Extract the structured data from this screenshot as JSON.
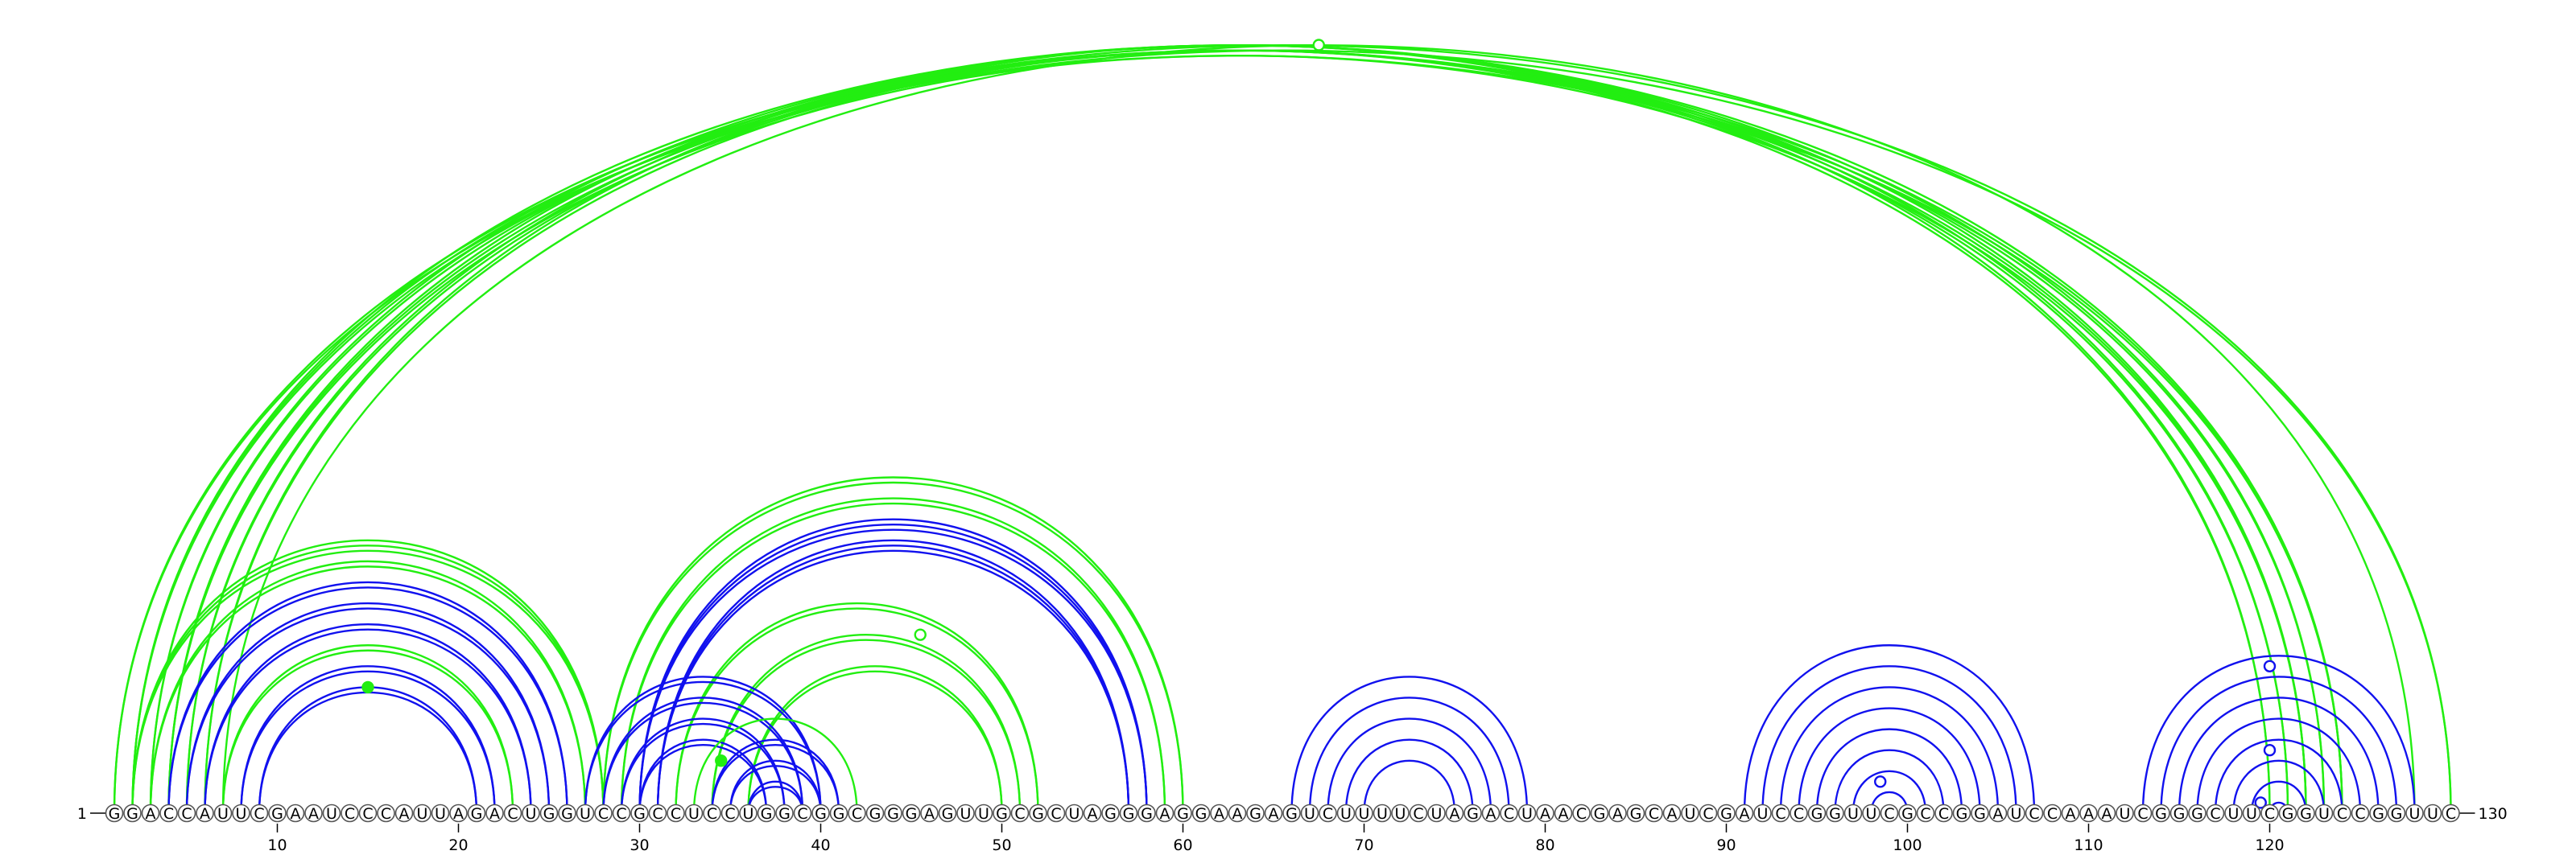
{
  "sequence": "GGACCAUUCGAAUCCCAUUAGACUGGUCCGCCUCCUGGCGGCGGGAGUUGCGCUAGGGAGGAAGAGUCUUUUCUAGACUAACGAGCAUCGAUCCGGUUCGCCGGAUCCAAAUCGGGCUUCGGUCCGGUUC",
  "start_label": "1",
  "end_label": "130",
  "tick_labels": [
    "10",
    "20",
    "30",
    "40",
    "50",
    "60",
    "70",
    "80",
    "90",
    "100",
    "110",
    "120"
  ],
  "colors": {
    "green": "#22ee11",
    "blue": "#1111ee",
    "outline": "#555555"
  },
  "arc_groups": [
    {
      "color": "green",
      "i": 1,
      "j": 130,
      "count": 2
    },
    {
      "color": "green",
      "i": 2,
      "j": 124,
      "count": 3
    },
    {
      "color": "green",
      "i": 3,
      "j": 123,
      "count": 2
    },
    {
      "color": "green",
      "i": 4,
      "j": 122,
      "count": 3
    },
    {
      "color": "green",
      "i": 5,
      "j": 121,
      "count": 2
    },
    {
      "color": "green",
      "i": 6,
      "j": 120,
      "count": 2
    },
    {
      "color": "green",
      "i": 7,
      "j": 128,
      "count": 1
    },
    {
      "color": "green",
      "i": 2,
      "j": 28,
      "count": 3
    },
    {
      "color": "green",
      "i": 3,
      "j": 27,
      "count": 2
    },
    {
      "color": "blue",
      "i": 4,
      "j": 26,
      "count": 2
    },
    {
      "color": "blue",
      "i": 5,
      "j": 25,
      "count": 2
    },
    {
      "color": "blue",
      "i": 6,
      "j": 24,
      "count": 2
    },
    {
      "color": "green",
      "i": 7,
      "j": 23,
      "count": 2
    },
    {
      "color": "blue",
      "i": 8,
      "j": 22,
      "count": 2
    },
    {
      "color": "blue",
      "i": 9,
      "j": 21,
      "count": 2
    },
    {
      "color": "green",
      "i": 28,
      "j": 60,
      "count": 2
    },
    {
      "color": "green",
      "i": 29,
      "j": 59,
      "count": 2
    },
    {
      "color": "blue",
      "i": 30,
      "j": 58,
      "count": 3
    },
    {
      "color": "blue",
      "i": 31,
      "j": 57,
      "count": 3
    },
    {
      "color": "green",
      "i": 32,
      "j": 52,
      "count": 2
    },
    {
      "color": "green",
      "i": 34,
      "j": 51,
      "count": 2
    },
    {
      "color": "green",
      "i": 36,
      "j": 50,
      "count": 2
    },
    {
      "color": "blue",
      "i": 27,
      "j": 40,
      "count": 2
    },
    {
      "color": "blue",
      "i": 28,
      "j": 39,
      "count": 2
    },
    {
      "color": "blue",
      "i": 29,
      "j": 38,
      "count": 2
    },
    {
      "color": "blue",
      "i": 30,
      "j": 37,
      "count": 2
    },
    {
      "color": "green",
      "i": 33,
      "j": 42,
      "count": 1
    },
    {
      "color": "blue",
      "i": 34,
      "j": 41,
      "count": 2
    },
    {
      "color": "blue",
      "i": 35,
      "j": 40,
      "count": 2
    },
    {
      "color": "blue",
      "i": 36,
      "j": 39,
      "count": 2
    },
    {
      "color": "blue",
      "i": 66,
      "j": 79,
      "count": 1
    },
    {
      "color": "blue",
      "i": 67,
      "j": 78,
      "count": 1
    },
    {
      "color": "blue",
      "i": 68,
      "j": 77,
      "count": 1
    },
    {
      "color": "blue",
      "i": 69,
      "j": 76,
      "count": 1
    },
    {
      "color": "blue",
      "i": 70,
      "j": 75,
      "count": 1
    },
    {
      "color": "blue",
      "i": 91,
      "j": 107,
      "count": 1
    },
    {
      "color": "blue",
      "i": 92,
      "j": 106,
      "count": 1
    },
    {
      "color": "blue",
      "i": 93,
      "j": 105,
      "count": 1
    },
    {
      "color": "blue",
      "i": 94,
      "j": 104,
      "count": 1
    },
    {
      "color": "blue",
      "i": 95,
      "j": 103,
      "count": 1
    },
    {
      "color": "blue",
      "i": 96,
      "j": 102,
      "count": 1
    },
    {
      "color": "blue",
      "i": 97,
      "j": 101,
      "count": 1
    },
    {
      "color": "blue",
      "i": 98,
      "j": 100,
      "count": 1
    },
    {
      "color": "blue",
      "i": 113,
      "j": 128,
      "count": 1
    },
    {
      "color": "blue",
      "i": 114,
      "j": 127,
      "count": 1
    },
    {
      "color": "blue",
      "i": 115,
      "j": 126,
      "count": 1
    },
    {
      "color": "blue",
      "i": 116,
      "j": 125,
      "count": 1
    },
    {
      "color": "blue",
      "i": 117,
      "j": 124,
      "count": 1
    },
    {
      "color": "blue",
      "i": 118,
      "j": 123,
      "count": 1
    },
    {
      "color": "blue",
      "i": 119,
      "j": 122,
      "count": 1
    },
    {
      "color": "blue",
      "i": 120,
      "j": 121,
      "count": 1
    }
  ],
  "markers": [
    {
      "i": 7,
      "j": 128,
      "fill": "none",
      "color": "green"
    },
    {
      "i": 9,
      "j": 21,
      "fill": "solid",
      "color": "green"
    },
    {
      "i": 32,
      "j": 37,
      "fill": "solid",
      "color": "green"
    },
    {
      "i": 37,
      "j": 54,
      "fill": "none",
      "color": "green"
    },
    {
      "i": 97,
      "j": 100,
      "fill": "none",
      "color": "blue"
    },
    {
      "i": 113,
      "j": 127,
      "fill": "none",
      "color": "blue"
    },
    {
      "i": 117,
      "j": 123,
      "fill": "none",
      "color": "blue"
    },
    {
      "i": 119,
      "j": 120,
      "fill": "none",
      "color": "blue"
    }
  ]
}
